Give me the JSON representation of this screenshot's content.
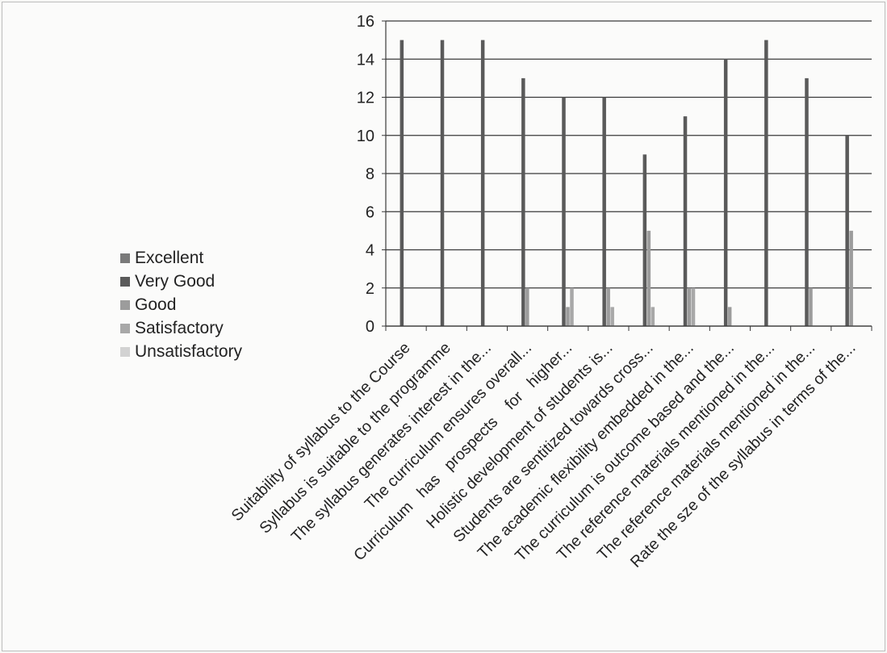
{
  "chart_data": {
    "type": "bar",
    "categories": [
      "Suitability of syllabus to the Course",
      "Syllabus is suitable to the programme",
      "The syllabus generates interest in the...",
      "The curriculum ensures overall...",
      "Curriculum   has   prospects    for   higher...",
      "Holistic development of students is...",
      "Students are sentitized towards cross...",
      "The academic flexibility embedded in the...",
      "The curriculum is outcome based and the...",
      "The reference materials mentioned in the...",
      "The reference materials mentioned in the...",
      "Rate the sze of the syllabus in terms of the..."
    ],
    "series": [
      {
        "name": "Excellent",
        "values": [
          0,
          0,
          0,
          0,
          0,
          0,
          0,
          0,
          0,
          0,
          0,
          0
        ]
      },
      {
        "name": "Very Good",
        "values": [
          15,
          15,
          15,
          13,
          12,
          12,
          9,
          11,
          14,
          15,
          13,
          10
        ]
      },
      {
        "name": "Good",
        "values": [
          0,
          0,
          0,
          2,
          1,
          2,
          5,
          2,
          1,
          0,
          2,
          5
        ]
      },
      {
        "name": "Satisfactory",
        "values": [
          0,
          0,
          0,
          0,
          2,
          1,
          1,
          2,
          0,
          0,
          0,
          0
        ]
      },
      {
        "name": "Unsatisfactory",
        "values": [
          0,
          0,
          0,
          0,
          0,
          0,
          0,
          0,
          0,
          0,
          0,
          0
        ]
      }
    ],
    "y_ticks": [
      "0",
      "2",
      "4",
      "6",
      "8",
      "10",
      "12",
      "14",
      "16"
    ],
    "ylim": [
      0,
      16
    ],
    "grid": true,
    "legend_position": "left",
    "colors": {
      "Excellent": "#7a7a7a",
      "Very Good": "#5a5a5a",
      "Good": "#9c9c9c",
      "Satisfactory": "#a8a8a8",
      "Unsatisfactory": "#d2d2d2"
    }
  }
}
